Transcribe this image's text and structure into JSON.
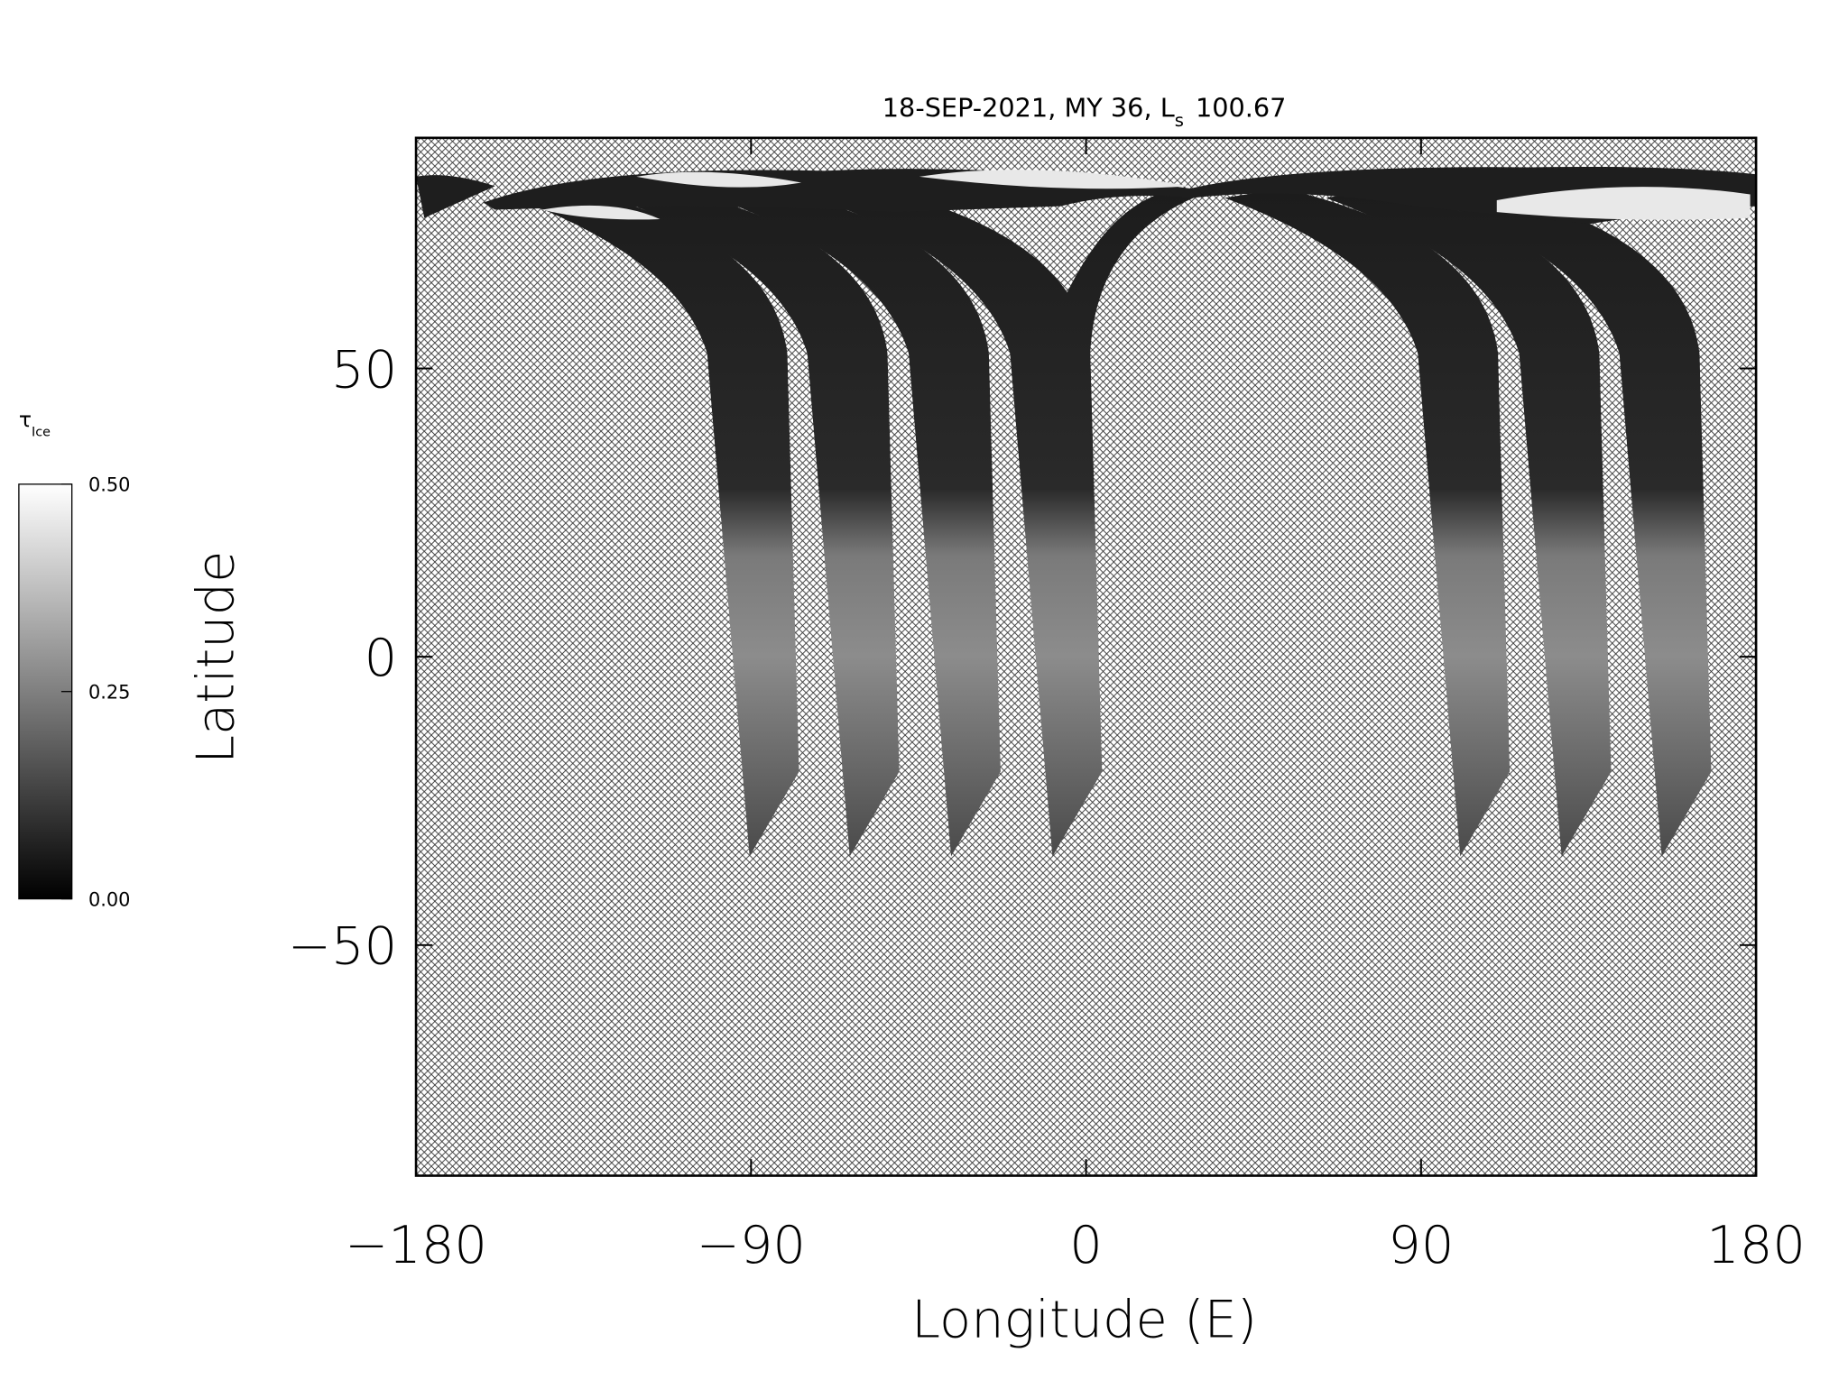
{
  "chart_data": {
    "type": "map",
    "title": {
      "text": "18-SEP-2021, MY 36,  L",
      "subscript": "s",
      "value": 100.67
    },
    "x_label": "Longitude (E)",
    "y_label": "Latitude",
    "xlim": [
      -180,
      180
    ],
    "xticks": [
      {
        "value": -180,
        "label": "−180"
      },
      {
        "value": -90,
        "label": "−90"
      },
      0,
      90,
      180
    ],
    "ylim": [
      -90,
      90
    ],
    "yticks": [
      {
        "value": -50,
        "label": "−50"
      },
      0,
      50
    ],
    "colorbar": {
      "label": "τ",
      "label_subscript": "Ice",
      "lim": [
        0,
        0.5
      ],
      "ticks": [
        {
          "value": 0,
          "label": "0.00"
        },
        {
          "value": 0.25,
          "label": "0.25"
        },
        {
          "value": 0.5,
          "label": "0.50"
        }
      ],
      "colors": [
        "#000000",
        "#ffffff"
      ]
    }
  }
}
